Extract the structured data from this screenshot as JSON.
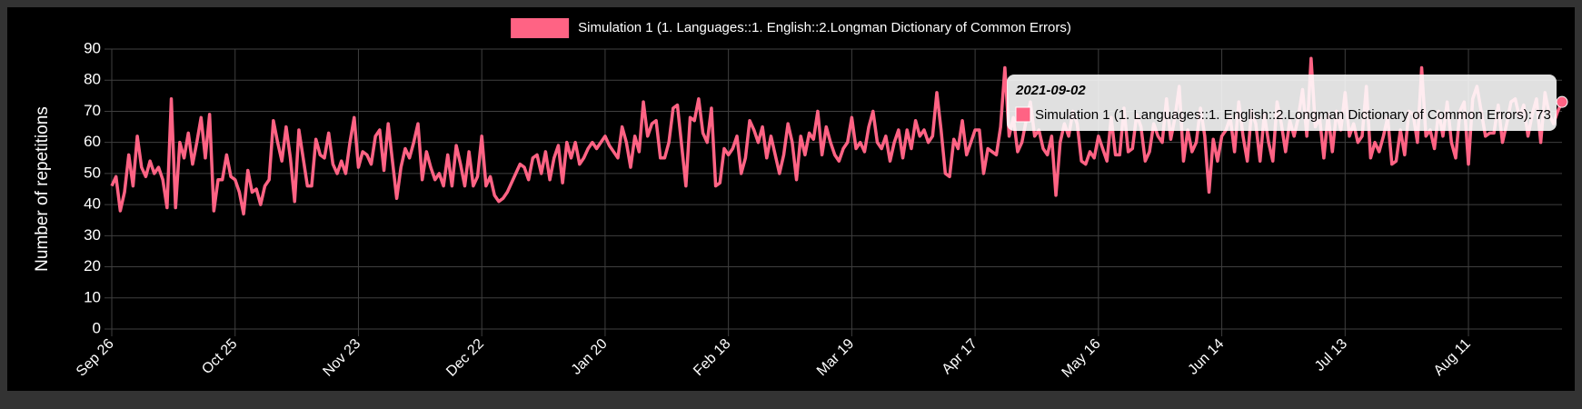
{
  "chart_data": {
    "type": "line",
    "y_label": "Number of repetitions",
    "ylim": [
      0,
      90
    ],
    "yticks": [
      0,
      10,
      20,
      30,
      40,
      50,
      60,
      70,
      80,
      90
    ],
    "grid": true,
    "legend": "top",
    "categories": [
      "Sep 26",
      null,
      null,
      null,
      null,
      null,
      null,
      null,
      null,
      null,
      null,
      null,
      null,
      null,
      null,
      null,
      null,
      null,
      null,
      null,
      null,
      null,
      null,
      null,
      null,
      null,
      null,
      null,
      null,
      "Oct 25",
      null,
      null,
      null,
      null,
      null,
      null,
      null,
      null,
      null,
      null,
      null,
      null,
      null,
      null,
      null,
      null,
      null,
      null,
      null,
      null,
      null,
      null,
      null,
      null,
      null,
      null,
      null,
      null,
      "Nov 23",
      null,
      null,
      null,
      null,
      null,
      null,
      null,
      null,
      null,
      null,
      null,
      null,
      null,
      null,
      null,
      null,
      null,
      null,
      null,
      null,
      null,
      null,
      null,
      null,
      null,
      null,
      null,
      null,
      "Dec 22",
      null,
      null,
      null,
      null,
      null,
      null,
      null,
      null,
      null,
      null,
      null,
      null,
      null,
      null,
      null,
      null,
      null,
      null,
      null,
      null,
      null,
      null,
      null,
      null,
      null,
      null,
      null,
      null,
      "Jan 20",
      null,
      null,
      null,
      null,
      null,
      null,
      null,
      null,
      null,
      null,
      null,
      null,
      null,
      null,
      null,
      null,
      null,
      null,
      null,
      null,
      null,
      null,
      null,
      null,
      null,
      null,
      null,
      null,
      "Feb 18",
      null,
      null,
      null,
      null,
      null,
      null,
      null,
      null,
      null,
      null,
      null,
      null,
      null,
      null,
      null,
      null,
      null,
      null,
      null,
      null,
      null,
      null,
      null,
      null,
      null,
      null,
      null,
      null,
      "Mar 19",
      null,
      null,
      null,
      null,
      null,
      null,
      null,
      null,
      null,
      null,
      null,
      null,
      null,
      null,
      null,
      null,
      null,
      null,
      null,
      null,
      null,
      null,
      null,
      null,
      null,
      null,
      null,
      null,
      "Apr 17",
      null,
      null,
      null,
      null,
      null,
      null,
      null,
      null,
      null,
      null,
      null,
      null,
      null,
      null,
      null,
      null,
      null,
      null,
      null,
      null,
      null,
      null,
      null,
      null,
      null,
      null,
      null,
      null,
      "May 16",
      null,
      null,
      null,
      null,
      null,
      null,
      null,
      null,
      null,
      null,
      null,
      null,
      null,
      null,
      null,
      null,
      null,
      null,
      null,
      null,
      null,
      null,
      null,
      null,
      null,
      null,
      null,
      null,
      "Jun 14",
      null,
      null,
      null,
      null,
      null,
      null,
      null,
      null,
      null,
      null,
      null,
      null,
      null,
      null,
      null,
      null,
      null,
      null,
      null,
      null,
      null,
      null,
      null,
      null,
      null,
      null,
      null,
      null,
      "Jul 13",
      null,
      null,
      null,
      null,
      null,
      null,
      null,
      null,
      null,
      null,
      null,
      null,
      null,
      null,
      null,
      null,
      null,
      null,
      null,
      null,
      null,
      null,
      null,
      null,
      null,
      null,
      null,
      null,
      "Aug 11",
      null,
      null,
      null,
      null,
      null,
      null,
      null,
      null,
      null,
      null,
      null,
      null,
      null,
      null,
      null,
      null,
      null,
      null,
      null,
      null,
      null,
      null
    ],
    "series": [
      {
        "name": "Simulation 1 (1. Languages::1. English::2.Longman Dictionary of Common Errors)",
        "color": "#ff6384",
        "values": [
          46,
          49,
          38,
          44,
          56,
          46,
          62,
          52,
          49,
          54,
          50,
          52,
          48,
          39,
          74,
          39,
          60,
          55,
          63,
          53,
          60,
          68,
          55,
          69,
          38,
          48,
          48,
          56,
          49,
          48,
          44,
          37,
          51,
          44,
          45,
          40,
          46,
          48,
          67,
          60,
          54,
          65,
          55,
          41,
          64,
          55,
          46,
          46,
          61,
          56,
          55,
          63,
          53,
          50,
          54,
          50,
          60,
          68,
          52,
          57,
          56,
          53,
          62,
          64,
          51,
          66,
          54,
          42,
          52,
          58,
          55,
          60,
          66,
          48,
          57,
          52,
          48,
          50,
          46,
          56,
          46,
          59,
          53,
          46,
          57,
          46,
          49,
          62,
          46,
          49,
          43,
          41,
          42,
          44,
          47,
          50,
          53,
          52,
          48,
          55,
          56,
          50,
          57,
          48,
          55,
          59,
          47,
          60,
          55,
          60,
          53,
          55,
          58,
          60,
          58,
          60,
          62,
          59,
          57,
          55,
          65,
          60,
          52,
          62,
          57,
          73,
          62,
          66,
          67,
          55,
          55,
          60,
          71,
          72,
          59,
          46,
          68,
          67,
          74,
          63,
          60,
          71,
          46,
          47,
          58,
          56,
          58,
          62,
          50,
          55,
          67,
          64,
          60,
          65,
          55,
          62,
          56,
          50,
          56,
          66,
          60,
          48,
          62,
          56,
          63,
          61,
          70,
          56,
          65,
          60,
          56,
          54,
          58,
          60,
          68,
          58,
          60,
          57,
          65,
          70,
          60,
          58,
          62,
          54,
          60,
          64,
          55,
          64,
          58,
          67,
          62,
          64,
          60,
          62,
          76,
          64,
          50,
          49,
          61,
          58,
          67,
          56,
          60,
          64,
          64,
          50,
          58,
          57,
          56,
          65,
          84,
          62,
          68,
          57,
          60,
          67,
          73,
          62,
          64,
          58,
          56,
          62,
          43,
          60,
          66,
          62,
          70,
          66,
          54,
          53,
          57,
          55,
          62,
          58,
          54,
          68,
          56,
          56,
          71,
          57,
          58,
          69,
          65,
          54,
          57,
          66,
          62,
          60,
          74,
          61,
          68,
          78,
          54,
          64,
          57,
          60,
          71,
          62,
          44,
          61,
          54,
          62,
          64,
          68,
          57,
          73,
          62,
          54,
          70,
          66,
          54,
          69,
          60,
          54,
          73,
          66,
          57,
          67,
          62,
          68,
          77,
          62,
          87,
          65,
          68,
          55,
          69,
          57,
          70,
          64,
          76,
          62,
          66,
          60,
          62,
          78,
          55,
          60,
          57,
          62,
          68,
          53,
          54,
          64,
          56,
          70,
          69,
          60,
          84,
          62,
          64,
          58,
          70,
          62,
          73,
          60,
          55,
          70,
          73,
          53,
          74,
          78,
          70,
          62,
          63,
          63,
          72,
          60,
          66,
          73,
          74,
          68,
          72,
          62,
          69,
          74,
          60,
          76,
          69,
          66,
          70,
          73
        ]
      }
    ],
    "tooltip": {
      "title": "2021-09-02",
      "text": "Simulation 1 (1. Languages::1. English::2.Longman Dictionary of Common Errors): 73"
    }
  }
}
